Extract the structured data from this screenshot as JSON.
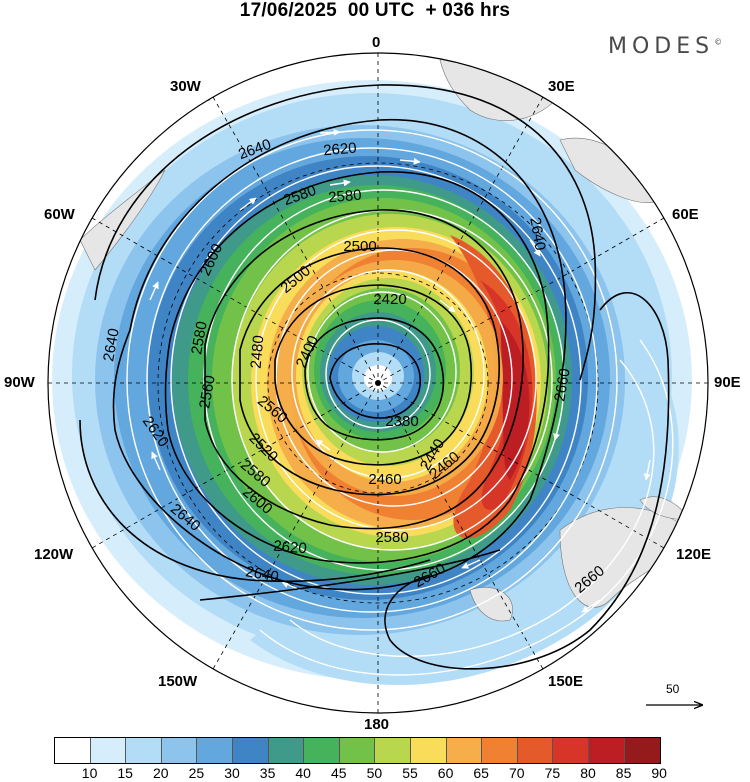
{
  "header": {
    "title": "17/06/2025  00 UTC  + 036 hrs",
    "brand": "MODES",
    "brand_mark": "©"
  },
  "map": {
    "projection": "south polar stereographic",
    "lon_labels": {
      "top": "0",
      "bottom": "180",
      "left": "90W",
      "right": "90E",
      "upper_left_1": "30W",
      "upper_left_2": "60W",
      "upper_right_1": "30E",
      "upper_right_2": "60E",
      "lower_left_1": "120W",
      "lower_left_2": "150W",
      "lower_right_1": "120E",
      "lower_right_2": "150E"
    },
    "contour_labels": [
      "2640",
      "2620",
      "2580",
      "2580",
      "2500",
      "2600",
      "2420",
      "2400",
      "2480",
      "2380",
      "2580",
      "2560",
      "2500",
      "2640",
      "2460",
      "2520",
      "2560",
      "2580",
      "2600",
      "2620",
      "2640",
      "2620",
      "2640",
      "2660",
      "2660",
      "2660",
      "2440",
      "2460",
      "2580",
      "2640"
    ],
    "colors": {
      "land": "#d9d9d9",
      "contour": "#000000",
      "streamline": "#ffffff"
    }
  },
  "vector_scale": {
    "label": "50"
  },
  "colorbar": {
    "colors": [
      "#ffffff",
      "#d6eefb",
      "#b3dcf6",
      "#8cc4ee",
      "#62a7de",
      "#3f85c6",
      "#3f9a8a",
      "#46b25b",
      "#72c24a",
      "#b9d64f",
      "#f8dc5a",
      "#f5ae4a",
      "#f08032",
      "#e55a2b",
      "#d73528",
      "#bc1e24",
      "#951a1c"
    ],
    "ticks": [
      "10",
      "15",
      "20",
      "25",
      "30",
      "35",
      "40",
      "45",
      "50",
      "55",
      "60",
      "65",
      "70",
      "75",
      "80",
      "85",
      "90"
    ]
  }
}
